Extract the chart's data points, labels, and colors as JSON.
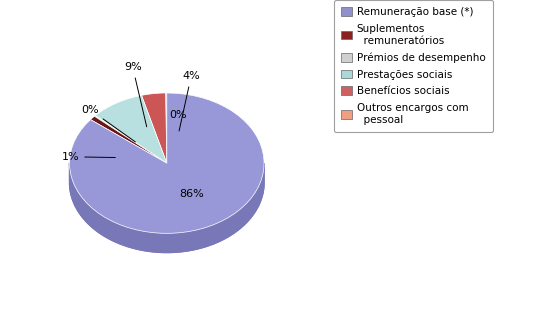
{
  "values": [
    86,
    1,
    0.2,
    9,
    4,
    0.2
  ],
  "pct_labels": [
    "86%",
    "1%",
    "0%",
    "9%",
    "4%",
    "0%"
  ],
  "colors_top": [
    "#9090CC",
    "#6B2020",
    "#A8D8D0",
    "#C8E8E0",
    "#CD6060",
    "#9090CC"
  ],
  "colors_side": [
    "#7070AA",
    "#4B1010",
    "#88B8B0",
    "#A8C8C0",
    "#AD4040",
    "#7070AA"
  ],
  "legend_labels": [
    "Remuneração base (*)",
    "Suplementos\n  remuneratórios",
    "Prémios de desempenho",
    "Prestações sociais",
    "Benefícios sociais",
    "Outros encargos com\n  pessoal"
  ],
  "legend_colors": [
    "#9090CC",
    "#8B2020",
    "#D0D0D0",
    "#A8D8D8",
    "#CD6060",
    "#F0A080"
  ],
  "background_color": "#ffffff",
  "startangle": 90,
  "depth": 0.15,
  "label_fontsize": 8
}
